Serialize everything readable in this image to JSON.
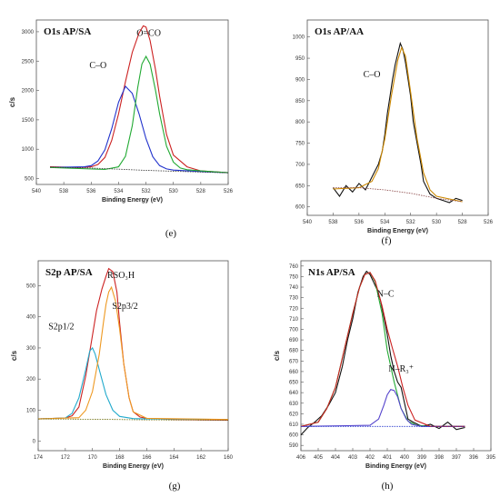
{
  "chart_data": [
    {
      "type": "line",
      "panel_label": "(e)",
      "title": "O1s AP/SA",
      "xlabel": "Binding Energy (eV)",
      "ylabel": "c/s",
      "x_reversed": true,
      "xlim": [
        526,
        540
      ],
      "ylim": [
        400,
        3200
      ],
      "xticks": [
        540,
        538,
        536,
        534,
        532,
        530,
        528,
        526
      ],
      "yticks": [
        500,
        1000,
        1500,
        2000,
        2500,
        3000
      ],
      "annotations": [
        {
          "text": "C–O",
          "x": 535.5,
          "y": 2380
        },
        {
          "text": "O=CO",
          "x": 531.8,
          "y": 2930
        }
      ],
      "series": [
        {
          "role": "envelope",
          "color": "#cc2222",
          "x": [
            539,
            537,
            536,
            535.5,
            535,
            534.5,
            534,
            533.5,
            533,
            532.5,
            532.2,
            532,
            531.7,
            531.3,
            531,
            530.5,
            530,
            529,
            528,
            526
          ],
          "y": [
            700,
            690,
            700,
            740,
            860,
            1150,
            1600,
            2150,
            2650,
            2980,
            3100,
            3080,
            2850,
            2350,
            1900,
            1250,
            900,
            700,
            630,
            600
          ]
        },
        {
          "role": "component",
          "name": "C–O",
          "color": "#2233cc",
          "x": [
            539,
            536.5,
            536,
            535.5,
            535,
            534.5,
            534,
            533.5,
            533,
            532.5,
            532,
            531.5,
            531,
            530.5,
            530,
            528,
            526
          ],
          "y": [
            690,
            700,
            720,
            800,
            990,
            1350,
            1800,
            2070,
            1950,
            1600,
            1180,
            870,
            720,
            665,
            645,
            620,
            600
          ]
        },
        {
          "role": "component",
          "name": "O=CO",
          "color": "#22aa33",
          "x": [
            539,
            535,
            534,
            533.5,
            533,
            532.6,
            532.3,
            532,
            531.7,
            531.3,
            531,
            530.5,
            530,
            529.5,
            529,
            528,
            526
          ],
          "y": [
            690,
            655,
            700,
            880,
            1400,
            2050,
            2450,
            2580,
            2450,
            2000,
            1600,
            1050,
            780,
            680,
            650,
            630,
            600
          ]
        },
        {
          "role": "background",
          "color": "#333333",
          "x": [
            539,
            536,
            532,
            528,
            526
          ],
          "y": [
            695,
            680,
            640,
            610,
            598
          ]
        }
      ]
    },
    {
      "type": "line",
      "panel_label": "(f)",
      "title": "O1s AP/AA",
      "xlabel": "Binding Energy (eV)",
      "ylabel": "",
      "x_reversed": true,
      "xlim": [
        526,
        540
      ],
      "ylim": [
        580,
        1040
      ],
      "xticks": [
        540,
        538,
        536,
        534,
        532,
        530,
        528,
        526
      ],
      "yticks": [
        600,
        650,
        700,
        750,
        800,
        850,
        900,
        950,
        1000
      ],
      "annotations": [
        {
          "text": "C–O",
          "x": 535.0,
          "y": 905
        }
      ],
      "series": [
        {
          "role": "data",
          "color": "#111111",
          "x": [
            538,
            537.5,
            537,
            536.5,
            536,
            535.5,
            535,
            534.5,
            534.2,
            534,
            533.8,
            533.6,
            533.4,
            533.2,
            533,
            532.8,
            532.6,
            532.4,
            532.2,
            532,
            531.8,
            531.5,
            531.2,
            531,
            530.5,
            530,
            529.5,
            529,
            528.5,
            528
          ],
          "y": [
            645,
            625,
            650,
            635,
            655,
            640,
            670,
            700,
            730,
            770,
            820,
            860,
            900,
            935,
            960,
            985,
            970,
            940,
            900,
            860,
            800,
            750,
            700,
            660,
            630,
            620,
            615,
            610,
            620,
            615
          ]
        },
        {
          "role": "fit",
          "color": "#cc8800",
          "x": [
            538,
            536,
            535,
            534.5,
            534,
            533.5,
            533,
            532.7,
            532.4,
            532,
            531.5,
            531,
            530.5,
            530,
            528
          ],
          "y": [
            642,
            645,
            660,
            690,
            760,
            860,
            945,
            975,
            955,
            870,
            760,
            680,
            640,
            625,
            612
          ]
        },
        {
          "role": "background",
          "color": "#884444",
          "x": [
            538,
            536,
            534,
            532,
            530,
            528
          ],
          "y": [
            645,
            645,
            640,
            632,
            620,
            612
          ]
        }
      ]
    },
    {
      "type": "line",
      "panel_label": "(g)",
      "title": "S2p AP/SA",
      "xlabel": "Binding Energy (eV)",
      "ylabel": "c/s",
      "x_reversed": true,
      "xlim": [
        160,
        174
      ],
      "ylim": [
        -30,
        580
      ],
      "xticks": [
        174,
        172,
        170,
        168,
        166,
        164,
        162,
        160
      ],
      "yticks": [
        0,
        100,
        200,
        300,
        400,
        500
      ],
      "annotations": [
        {
          "text": "RSO₃H",
          "x": 167.9,
          "y": 525
        },
        {
          "text": "S2p3/2",
          "x": 167.6,
          "y": 425
        },
        {
          "text": "S2p1/2",
          "x": 172.3,
          "y": 360
        }
      ],
      "series": [
        {
          "role": "envelope",
          "color": "#cc2222",
          "x": [
            174,
            172,
            171.5,
            171,
            170.5,
            170,
            169.7,
            169.3,
            169,
            168.8,
            168.5,
            168.2,
            168,
            167.7,
            167.3,
            167,
            166.5,
            166,
            164,
            160
          ],
          "y": [
            72,
            75,
            82,
            110,
            210,
            340,
            420,
            490,
            530,
            555,
            545,
            480,
            380,
            250,
            140,
            95,
            78,
            74,
            70,
            68
          ]
        },
        {
          "role": "component",
          "name": "S2p1/2",
          "color": "#22aacc",
          "x": [
            174,
            172,
            171.5,
            171,
            170.5,
            170.2,
            170,
            169.8,
            169.5,
            169,
            168.5,
            168,
            167,
            166,
            160
          ],
          "y": [
            72,
            75,
            90,
            140,
            230,
            290,
            300,
            280,
            230,
            150,
            100,
            80,
            73,
            72,
            70
          ]
        },
        {
          "role": "component",
          "name": "S2p3/2",
          "color": "#ee9922",
          "x": [
            174,
            171,
            170.5,
            170,
            169.5,
            169.2,
            169,
            168.8,
            168.6,
            168.3,
            168,
            167.7,
            167.3,
            167,
            166,
            160
          ],
          "y": [
            72,
            76,
            100,
            160,
            280,
            380,
            440,
            480,
            495,
            450,
            360,
            250,
            140,
            95,
            74,
            70
          ]
        },
        {
          "role": "background",
          "color": "#666600",
          "x": [
            174,
            170,
            166,
            160
          ],
          "y": [
            72,
            71,
            69,
            68
          ]
        }
      ]
    },
    {
      "type": "line",
      "panel_label": "(h)",
      "title": "N1s AP/SA",
      "xlabel": "Binding Energy (eV)",
      "ylabel": "c/s",
      "x_reversed": true,
      "xlim": [
        395,
        406
      ],
      "ylim": [
        585,
        765
      ],
      "xticks": [
        406,
        405,
        404,
        403,
        402,
        401,
        400,
        399,
        398,
        397,
        396,
        395
      ],
      "yticks": [
        590,
        600,
        610,
        620,
        630,
        640,
        650,
        660,
        670,
        680,
        690,
        700,
        710,
        720,
        730,
        740,
        750,
        760
      ],
      "annotations": [
        {
          "text": "N–C",
          "x": 401.1,
          "y": 731
        },
        {
          "text": "N–R₃⁺",
          "x": 400.2,
          "y": 660
        }
      ],
      "series": [
        {
          "role": "data",
          "color": "#111111",
          "x": [
            406,
            405.6,
            405.2,
            404.8,
            404.4,
            404,
            403.6,
            403.3,
            403,
            402.7,
            402.4,
            402.2,
            402,
            401.8,
            401.6,
            401.4,
            401.2,
            401,
            400.8,
            400.6,
            400.4,
            400.2,
            400,
            399.8,
            399.5,
            399,
            398.5,
            398,
            397.5,
            397,
            396.5
          ],
          "y": [
            600,
            607,
            612,
            618,
            628,
            640,
            665,
            690,
            710,
            735,
            750,
            755,
            752,
            745,
            738,
            728,
            712,
            695,
            675,
            660,
            650,
            645,
            630,
            615,
            612,
            608,
            610,
            606,
            612,
            605,
            607
          ]
        },
        {
          "role": "component",
          "name": "N–C",
          "color": "#22aa33",
          "x": [
            406,
            405,
            404.5,
            404,
            403.5,
            403,
            402.6,
            402.3,
            402,
            401.7,
            401.3,
            401,
            400.6,
            400.2,
            399.8,
            399.3,
            398.5,
            396.5
          ],
          "y": [
            608,
            612,
            625,
            645,
            680,
            715,
            740,
            752,
            754,
            745,
            715,
            680,
            650,
            625,
            613,
            609,
            608,
            608
          ]
        },
        {
          "role": "component",
          "name": "N–R₃⁺",
          "color": "#5544cc",
          "x": [
            406,
            402,
            401.5,
            401.2,
            401,
            400.8,
            400.6,
            400.4,
            400.2,
            399.9,
            399.6,
            399,
            396.5
          ],
          "y": [
            608,
            609,
            615,
            628,
            638,
            643,
            642,
            636,
            625,
            615,
            610,
            608,
            608
          ]
        },
        {
          "role": "fit",
          "color": "#cc2222",
          "x": [
            406,
            405,
            404.5,
            404,
            403.5,
            403,
            402.6,
            402.3,
            402,
            401.7,
            401.3,
            401,
            400.7,
            400.4,
            400.1,
            399.8,
            399.4,
            398.5,
            396.5
          ],
          "y": [
            608,
            612,
            625,
            645,
            680,
            715,
            740,
            752,
            754,
            746,
            722,
            700,
            682,
            665,
            645,
            628,
            614,
            608,
            608
          ]
        },
        {
          "role": "background",
          "color": "#2233cc",
          "x": [
            406,
            401,
            396.5
          ],
          "y": [
            608,
            608,
            608
          ]
        }
      ]
    }
  ]
}
